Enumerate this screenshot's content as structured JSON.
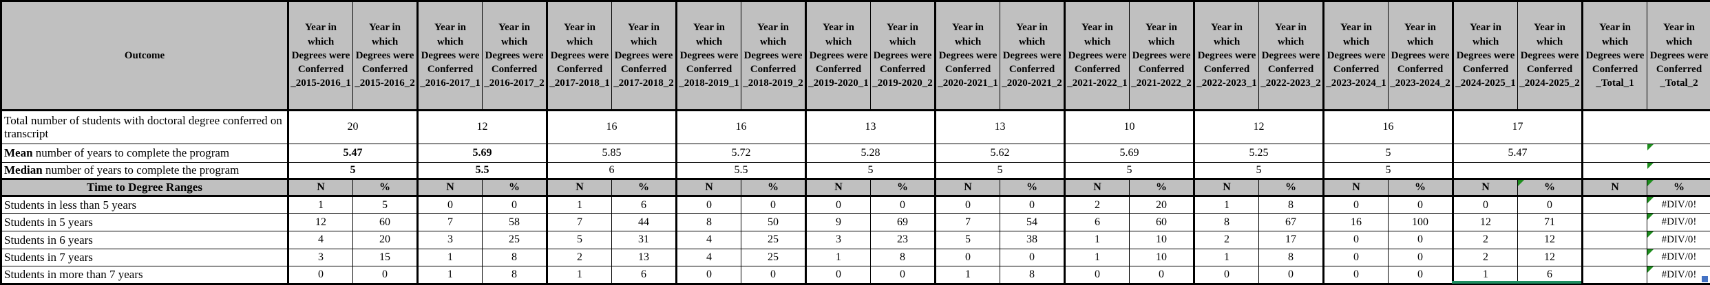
{
  "colors": {
    "header_bg": "#C0C0C0",
    "grid_line": "#000000",
    "error_indicator_green": "#1E8E1E",
    "selection_line_green": "#1F8F62",
    "fill_handle_blue": "#4472C4"
  },
  "header": {
    "outcome": "Outcome",
    "columns": [
      "Year in which Degrees were Conferred _2015-2016_1",
      "Year in which Degrees were Conferred _2015-2016_2",
      "Year in which Degrees were Conferred _2016-2017_1",
      "Year in which Degrees were Conferred _2016-2017_2",
      "Year in which Degrees were Conferred _2017-2018_1",
      "Year in which Degrees were Conferred _2017-2018_2",
      "Year in which Degrees were Conferred _2018-2019_1",
      "Year in which Degrees were Conferred _2018-2019_2",
      "Year in which Degrees were Conferred _2019-2020_1",
      "Year in which Degrees were Conferred _2019-2020_2",
      "Year in which Degrees were Conferred _2020-2021_1",
      "Year in which Degrees were Conferred _2020-2021_2",
      "Year in which Degrees were Conferred _2021-2022_1",
      "Year in which Degrees were Conferred _2021-2022_2",
      "Year in which Degrees were Conferred _2022-2023_1",
      "Year in which Degrees were Conferred _2022-2023_2",
      "Year in which Degrees were Conferred _2023-2024_1",
      "Year in which Degrees were Conferred _2023-2024_2",
      "Year in which Degrees were Conferred _2024-2025_1",
      "Year in which Degrees were Conferred _2024-2025_2",
      "Year in which Degrees were Conferred _Total_1",
      "Year in which Degrees were Conferred _Total_2"
    ]
  },
  "total_row": {
    "label": "Total number of students with doctoral degree conferred on transcript",
    "values": [
      "20",
      "12",
      "16",
      "16",
      "13",
      "13",
      "10",
      "12",
      "16",
      "17",
      ""
    ]
  },
  "mean_row": {
    "label_bold": "Mean",
    "label_rest": " number of years to complete the program",
    "values": [
      "5.47",
      "5.69",
      "5.85",
      "5.72",
      "5.28",
      "5.62",
      "5.69",
      "5.25",
      "5",
      "5.47",
      ""
    ]
  },
  "median_row": {
    "label_bold": "Median",
    "label_rest": " number of years to complete the program",
    "values": [
      "5",
      "5.5",
      "6",
      "5.5",
      "5",
      "5",
      "5",
      "5",
      "5",
      "",
      ""
    ]
  },
  "ranges_header": {
    "label": "Time to Degree Ranges",
    "n_label": "N",
    "pct_label": "%"
  },
  "range_rows": [
    {
      "label": "Students in less than 5 years",
      "cells": [
        "1",
        "5",
        "0",
        "0",
        "1",
        "6",
        "0",
        "0",
        "0",
        "0",
        "0",
        "0",
        "2",
        "20",
        "1",
        "8",
        "0",
        "0",
        "0",
        "0",
        "",
        "#DIV/0!"
      ]
    },
    {
      "label": "Students in 5 years",
      "cells": [
        "12",
        "60",
        "7",
        "58",
        "7",
        "44",
        "8",
        "50",
        "9",
        "69",
        "7",
        "54",
        "6",
        "60",
        "8",
        "67",
        "16",
        "100",
        "12",
        "71",
        "",
        "#DIV/0!"
      ]
    },
    {
      "label": "Students in 6 years",
      "cells": [
        "4",
        "20",
        "3",
        "25",
        "5",
        "31",
        "4",
        "25",
        "3",
        "23",
        "5",
        "38",
        "1",
        "10",
        "2",
        "17",
        "0",
        "0",
        "2",
        "12",
        "",
        "#DIV/0!"
      ]
    },
    {
      "label": "Students in 7 years",
      "cells": [
        "3",
        "15",
        "1",
        "8",
        "2",
        "13",
        "4",
        "25",
        "1",
        "8",
        "0",
        "0",
        "1",
        "10",
        "1",
        "8",
        "0",
        "0",
        "2",
        "12",
        "",
        "#DIV/0!"
      ]
    },
    {
      "label": "Students in more than 7 years",
      "cells": [
        "0",
        "0",
        "1",
        "8",
        "1",
        "6",
        "0",
        "0",
        "0",
        "0",
        "1",
        "8",
        "0",
        "0",
        "0",
        "0",
        "0",
        "0",
        "1",
        "6",
        "",
        "#DIV/0!"
      ]
    }
  ]
}
